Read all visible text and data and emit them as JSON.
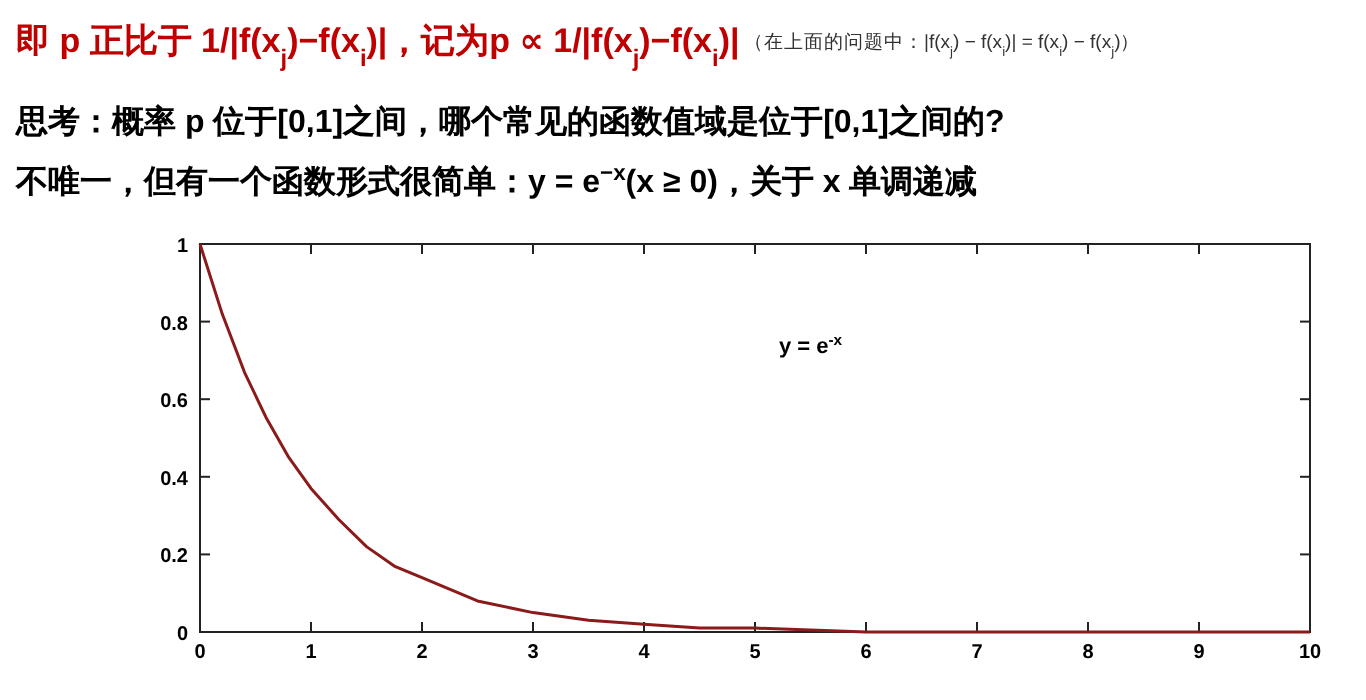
{
  "chart_data": {
    "type": "line",
    "title": "即 p 正比于 1/|f(x$_{j}$)−f(x$_{i}$)|，记为p ∝ 1/|f(x$_{j}$)−f(x$_{i}$)|",
    "subtitle": "思考：概率 p 位于[0,1]之间，哪个常见的函数值域是位于[0,1]之间的?",
    "annotations": [
      "（在上面的问题中：|f(x$_{j}$) − f(x$_{i}$)| = f(x$_{i}$) − f(x$_{j}$)）",
      "不唯一，但有一个函数形式很简单：y = e$^{−x}$(x ≥ 0)，关于 x 单调递减"
    ],
    "series": [
      {
        "name": "y = e$^{-x}$",
        "color": "#8b1a1a",
        "x": [
          0,
          0.2,
          0.4,
          0.6,
          0.8,
          1,
          1.25,
          1.5,
          1.75,
          2,
          2.5,
          3,
          3.5,
          4,
          4.5,
          5,
          6,
          7,
          8,
          10
        ],
        "values": [
          1,
          0.82,
          0.67,
          0.55,
          0.45,
          0.37,
          0.29,
          0.22,
          0.17,
          0.14,
          0.08,
          0.05,
          0.03,
          0.02,
          0.01,
          0.01,
          0,
          0,
          0,
          0
        ]
      }
    ],
    "xlim": [
      0,
      10
    ],
    "ylim": [
      0,
      1
    ],
    "xticks": [
      0,
      1,
      2,
      3,
      4,
      5,
      6,
      7,
      8,
      9,
      10
    ],
    "yticks": [
      0,
      0.2,
      0.4,
      0.6,
      0.8,
      1
    ],
    "grid": false,
    "marker": "none",
    "line_style": "solid"
  }
}
